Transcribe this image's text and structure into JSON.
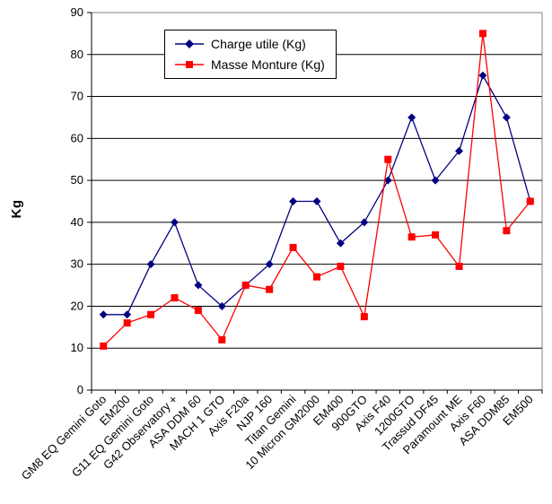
{
  "chart_data": {
    "type": "line",
    "title": "",
    "xlabel": "",
    "ylabel": "Kg",
    "ylim": [
      0,
      90
    ],
    "ytick_step": 10,
    "yticks": [
      0,
      10,
      20,
      30,
      40,
      50,
      60,
      70,
      80,
      90
    ],
    "grid": "horizontal",
    "legend_position": "top-center-inside",
    "categories": [
      "GM8 EQ Gemini Goto",
      "EM200",
      "G11 EQ Gemini Goto",
      "G42 Observatory +",
      "ASA DDM 60",
      "MACH 1 GTO",
      "Axis F20a",
      "NJP 160",
      "Titan Gemini",
      "10 Micron GM2000",
      "EM400",
      "900GTO",
      "Axis F40",
      "1200GTO",
      "Trassud DF45",
      "Paramount ME",
      "Axis F60",
      "ASA DDM85",
      "EM500"
    ],
    "series": [
      {
        "name": "Charge utile (Kg)",
        "color": "#000080",
        "marker": "diamond",
        "values": [
          18,
          18,
          30,
          40,
          25,
          20,
          25,
          30,
          45,
          45,
          35,
          40,
          50,
          65,
          50,
          57,
          75,
          65,
          45
        ]
      },
      {
        "name": "Masse Monture (Kg)",
        "color": "#FF0000",
        "marker": "square",
        "values": [
          10.5,
          16,
          18,
          22,
          19,
          12,
          25,
          24,
          34,
          27,
          29.5,
          17.5,
          55,
          36.5,
          37,
          29.5,
          85,
          38,
          45
        ]
      }
    ],
    "axis_color": "#000000",
    "plot_border_color": "#808080"
  }
}
